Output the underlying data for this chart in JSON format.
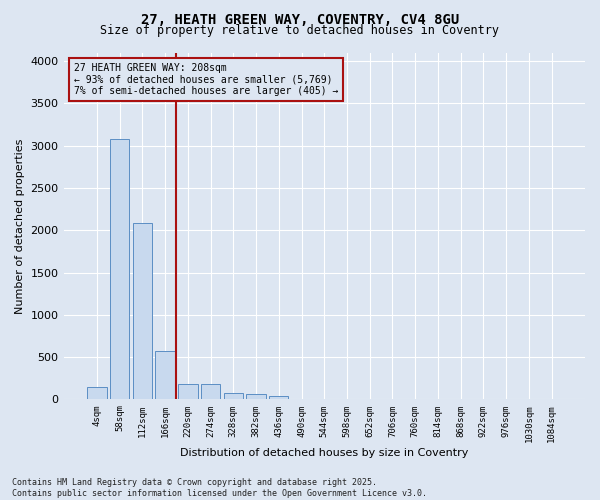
{
  "title_line1": "27, HEATH GREEN WAY, COVENTRY, CV4 8GU",
  "title_line2": "Size of property relative to detached houses in Coventry",
  "xlabel": "Distribution of detached houses by size in Coventry",
  "ylabel": "Number of detached properties",
  "categories": [
    "4sqm",
    "58sqm",
    "112sqm",
    "166sqm",
    "220sqm",
    "274sqm",
    "328sqm",
    "382sqm",
    "436sqm",
    "490sqm",
    "544sqm",
    "598sqm",
    "652sqm",
    "706sqm",
    "760sqm",
    "814sqm",
    "868sqm",
    "922sqm",
    "976sqm",
    "1030sqm",
    "1084sqm"
  ],
  "bar_heights": [
    150,
    3080,
    2080,
    570,
    185,
    185,
    75,
    60,
    40,
    0,
    0,
    0,
    0,
    0,
    0,
    0,
    0,
    0,
    0,
    0,
    0
  ],
  "bar_color": "#c8d9ee",
  "bar_edge_color": "#5b8ec4",
  "vline_color": "#aa1111",
  "annotation_title": "27 HEATH GREEN WAY: 208sqm",
  "annotation_line2": "← 93% of detached houses are smaller (5,769)",
  "annotation_line3": "7% of semi-detached houses are larger (405) →",
  "annotation_box_color": "#aa1111",
  "ylim": [
    0,
    4100
  ],
  "yticks": [
    0,
    500,
    1000,
    1500,
    2000,
    2500,
    3000,
    3500,
    4000
  ],
  "background_color": "#dde6f2",
  "grid_color": "#ffffff",
  "footer_line1": "Contains HM Land Registry data © Crown copyright and database right 2025.",
  "footer_line2": "Contains public sector information licensed under the Open Government Licence v3.0."
}
